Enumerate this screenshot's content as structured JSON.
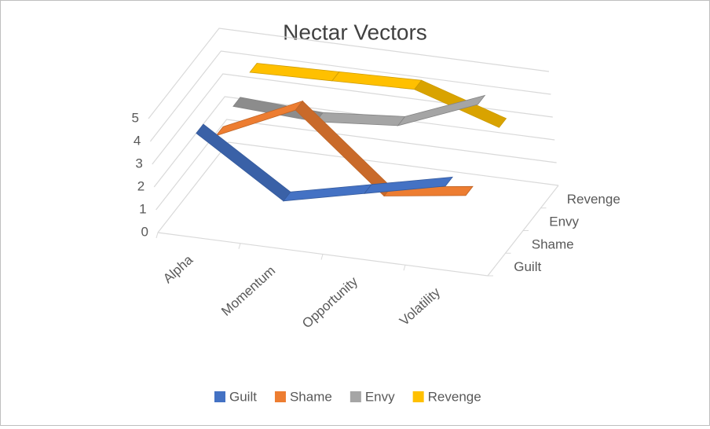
{
  "chart_data": {
    "type": "line",
    "title": "Nectar Vectors",
    "categories": [
      "Alpha",
      "Momentum",
      "Opportunity",
      "Volatility"
    ],
    "series": [
      {
        "name": "Guilt",
        "color": "#4472c4",
        "values": [
          4.3,
          1.8,
          2.6,
          3.4
        ]
      },
      {
        "name": "Shame",
        "color": "#ed7d31",
        "values": [
          3.2,
          4.8,
          1.5,
          2.0
        ]
      },
      {
        "name": "Envy",
        "color": "#a5a5a5",
        "values": [
          3.5,
          3.3,
          3.6,
          5.0
        ]
      },
      {
        "name": "Revenge",
        "color": "#ffc000",
        "values": [
          4.0,
          4.1,
          4.2,
          3.0
        ]
      }
    ],
    "ylim": [
      0,
      5
    ],
    "yticks": [
      0,
      1,
      2,
      3,
      4,
      5
    ],
    "grid": true,
    "legend": "bottom"
  }
}
